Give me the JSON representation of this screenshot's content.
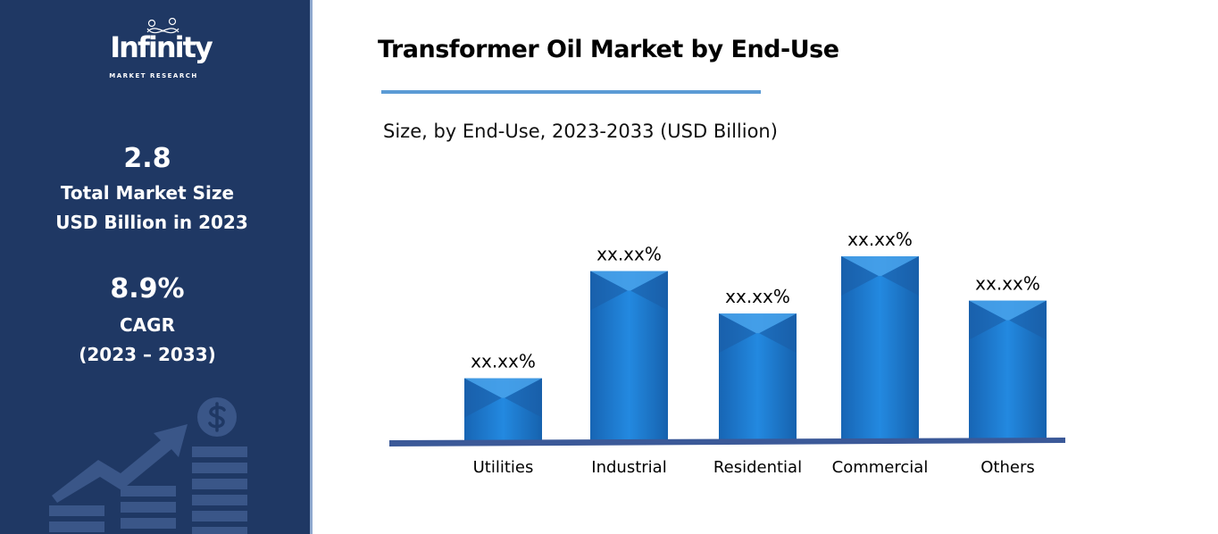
{
  "sidebar": {
    "logo_text": "Infinity",
    "logo_subtext": "MARKET RESEARCH",
    "market_size_value": "2.8",
    "market_size_label_1": "Total Market Size",
    "market_size_label_2": "USD Billion in 2023",
    "cagr_value": "8.9%",
    "cagr_label": "CAGR",
    "cagr_period": "(2023 – 2033)",
    "background_color": "#1f3864",
    "decoration_icon": "growth-chart-dollar-icon"
  },
  "chart_data": {
    "type": "bar",
    "title": "Transformer Oil Market by End-Use",
    "subtitle": "Size, by End-Use, 2023-2033 (USD Billion)",
    "categories": [
      "Utilities",
      "Industrial",
      "Residential",
      "Commercial",
      "Others"
    ],
    "values": [
      34,
      92,
      69,
      100,
      76
    ],
    "data_labels": [
      "xx.xx%",
      "xx.xx%",
      "xx.xx%",
      "xx.xx%",
      "xx.xx%"
    ],
    "xlabel": "",
    "ylabel": "",
    "grid": false,
    "legend": "none",
    "bar_color": "#1e7bd0",
    "baseline_color": "#3b5998",
    "accent_rule_color": "#5b9bd5"
  }
}
